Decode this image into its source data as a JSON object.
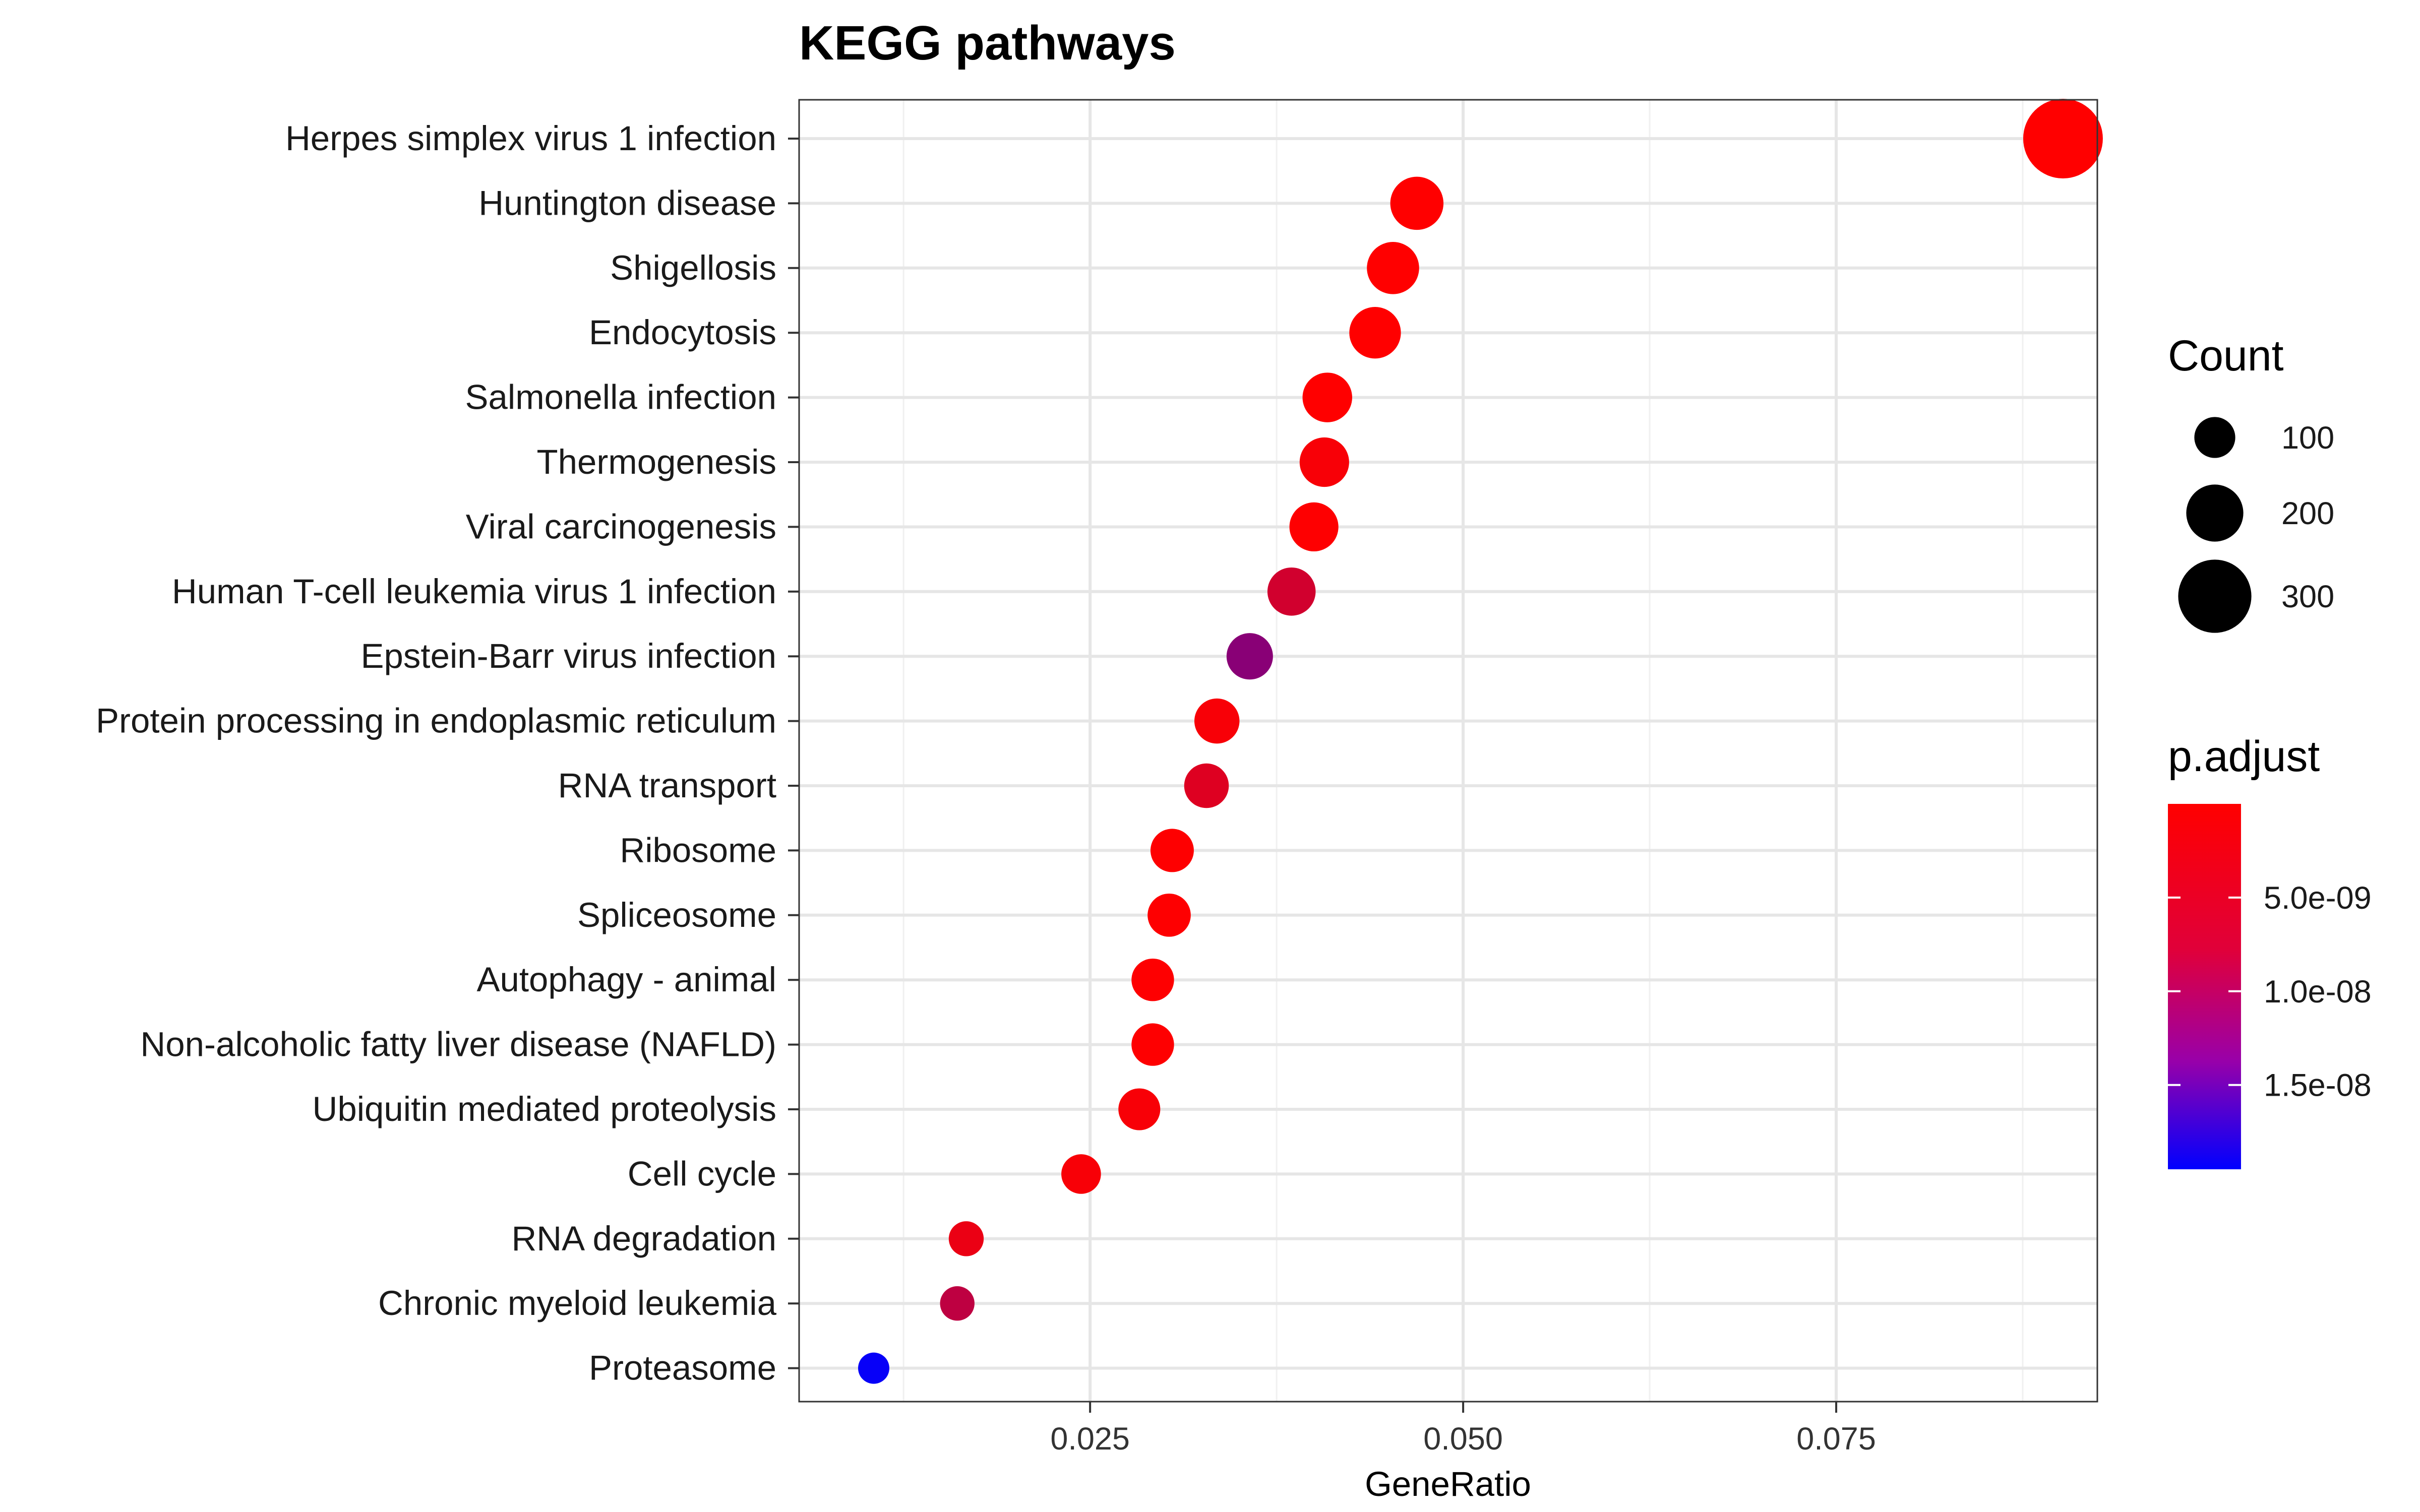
{
  "chart_data": {
    "type": "scatter",
    "title": "KEGG pathways",
    "xlabel": "GeneRatio",
    "ylabel": "",
    "xlim": [
      0.0055,
      0.0925
    ],
    "x_ticks": [
      0.025,
      0.05,
      0.075
    ],
    "x_tick_labels": [
      "0.025",
      "0.050",
      "0.075"
    ],
    "grid": true,
    "legend_position": "right",
    "categories": [
      "Herpes simplex virus 1 infection",
      "Huntington disease",
      "Shigellosis",
      "Endocytosis",
      "Salmonella infection",
      "Thermogenesis",
      "Viral carcinogenesis",
      "Human T-cell leukemia virus 1 infection",
      "Epstein-Barr virus infection",
      "Protein processing in endoplasmic reticulum",
      "RNA transport",
      "Ribosome",
      "Spliceosome",
      "Autophagy - animal",
      "Non-alcoholic fatty liver disease (NAFLD)",
      "Ubiquitin mediated proteolysis",
      "Cell cycle",
      "RNA degradation",
      "Chronic myeloid leukemia",
      "Proteasome"
    ],
    "gene_ratio": [
      0.0902,
      0.0469,
      0.0453,
      0.0441,
      0.0409,
      0.0407,
      0.04,
      0.0385,
      0.0357,
      0.0335,
      0.0328,
      0.0305,
      0.0303,
      0.0292,
      0.0292,
      0.0283,
      0.0244,
      0.0167,
      0.0161,
      0.0105
    ],
    "count": [
      340,
      176,
      170,
      166,
      154,
      153,
      150,
      145,
      134,
      126,
      123,
      115,
      114,
      110,
      110,
      106,
      92,
      63,
      60,
      40
    ],
    "p_adjust": [
      1e-12,
      1e-11,
      1e-11,
      1e-11,
      1e-11,
      5e-10,
      1e-10,
      3.5e-09,
      9e-09,
      5e-10,
      2.5e-09,
      1e-10,
      1e-10,
      1e-10,
      1e-10,
      5e-10,
      5e-10,
      1.5e-09,
      5e-09,
      1.9e-08
    ],
    "size_legend": {
      "title": "Count",
      "values": [
        100,
        200,
        300
      ],
      "labels": [
        "100",
        "200",
        "300"
      ]
    },
    "color_legend": {
      "title": "p.adjust",
      "range": [
        0,
        1.95e-08
      ],
      "low_color": "#ff0000",
      "high_color": "#0000ff",
      "ticks": [
        5e-09,
        1e-08,
        1.5e-08
      ],
      "labels": [
        "5.0e-09",
        "1.0e-08",
        "1.5e-08"
      ]
    }
  }
}
